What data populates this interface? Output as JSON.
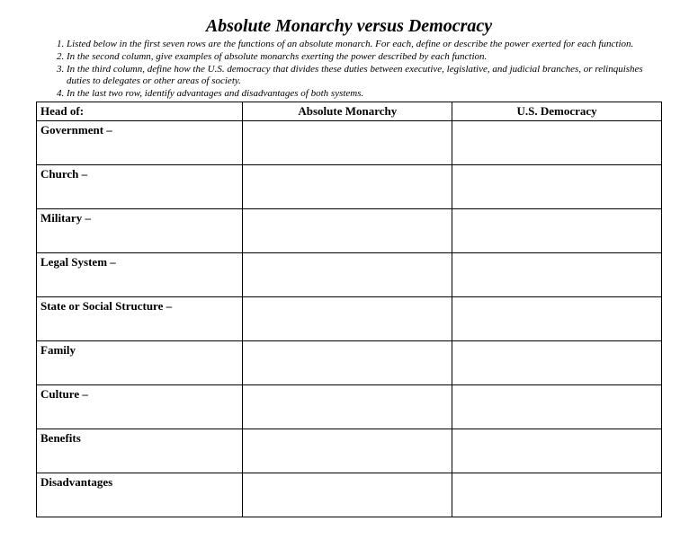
{
  "title": "Absolute Monarchy versus Democracy",
  "instructions": [
    "Listed below in the first seven rows are the functions of an absolute monarch.  For each, define or describe the power exerted for each function.",
    "In the second column, give examples of absolute monarchs exerting the power described by each function.",
    "In the third column, define how the U.S. democracy that divides these duties between executive, legislative, and judicial branches,  or relinquishes duties to delegates or other areas of society.",
    "In the last two row,  identify advantages and disadvantages of both systems."
  ],
  "table": {
    "columns": [
      "Head of:",
      "Absolute Monarchy",
      "U.S.  Democracy"
    ],
    "rows": [
      {
        "label": "Government –"
      },
      {
        "label": "Church –"
      },
      {
        "label": "Military –"
      },
      {
        "label": "Legal System –"
      },
      {
        "label": "State or Social Structure –"
      },
      {
        "label": "Family"
      },
      {
        "label": "Culture –"
      },
      {
        "label": "Benefits"
      },
      {
        "label": "Disadvantages"
      }
    ]
  }
}
